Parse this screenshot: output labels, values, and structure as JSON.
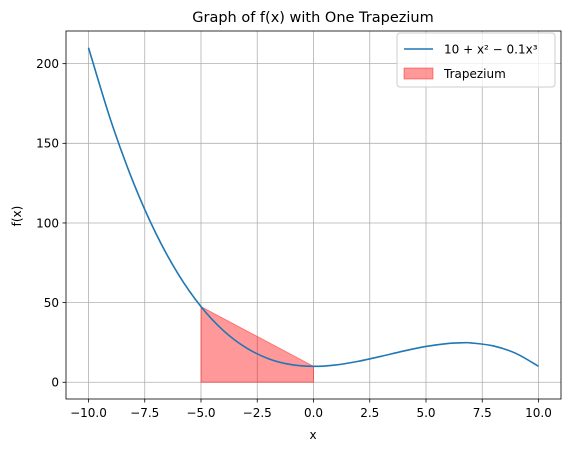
{
  "chart_data": {
    "type": "line",
    "title": "Graph of f(x) with One Trapezium",
    "xlabel": "x",
    "ylabel": "f(x)",
    "xlim": [
      -11,
      11
    ],
    "ylim": [
      -10.5,
      220.5
    ],
    "grid": true,
    "legend_position": "top-right",
    "x_ticks": [
      -10.0,
      -7.5,
      -5.0,
      -2.5,
      0.0,
      2.5,
      5.0,
      7.5,
      10.0
    ],
    "x_tick_labels": [
      "−10.0",
      "−7.5",
      "−5.0",
      "−2.5",
      "0.0",
      "2.5",
      "5.0",
      "7.5",
      "10.0"
    ],
    "y_ticks": [
      0,
      50,
      100,
      150,
      200
    ],
    "y_tick_labels": [
      "0",
      "50",
      "100",
      "150",
      "200"
    ],
    "series": [
      {
        "name": "10 + x² − 0.1x³",
        "color": "#1f77b4",
        "x": [
          -10.0,
          -9.0,
          -8.0,
          -7.0,
          -6.0,
          -5.0,
          -4.0,
          -3.0,
          -2.0,
          -1.0,
          0.0,
          1.0,
          2.0,
          3.0,
          4.0,
          5.0,
          6.0,
          6.67,
          7.0,
          8.0,
          9.0,
          10.0
        ],
        "y": [
          210.0,
          163.9,
          125.2,
          93.3,
          67.6,
          47.5,
          32.4,
          21.7,
          14.8,
          11.1,
          10.0,
          10.9,
          13.2,
          16.3,
          19.6,
          22.5,
          24.4,
          24.81,
          24.7,
          22.8,
          18.1,
          10.0
        ]
      }
    ],
    "trapezium": {
      "name": "Trapezium",
      "color": "#ff0000",
      "alpha": 0.4,
      "x": [
        -5.0,
        0.0
      ],
      "y": [
        47.5,
        10.0
      ]
    }
  }
}
